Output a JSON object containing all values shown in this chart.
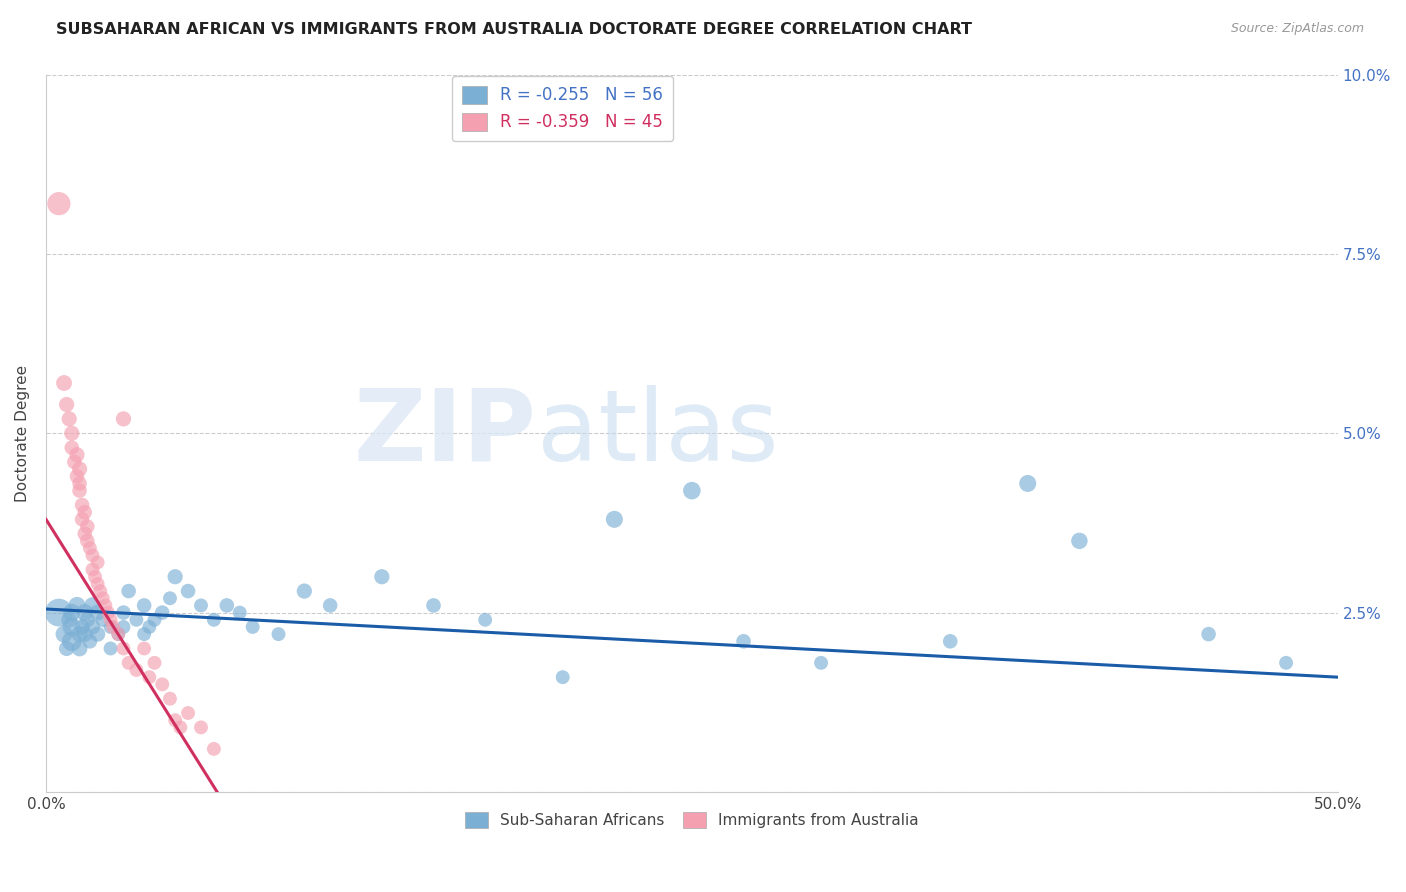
{
  "title": "SUBSAHARAN AFRICAN VS IMMIGRANTS FROM AUSTRALIA DOCTORATE DEGREE CORRELATION CHART",
  "source": "Source: ZipAtlas.com",
  "ylabel": "Doctorate Degree",
  "xlim": [
    0.0,
    0.5
  ],
  "ylim": [
    0.0,
    0.1
  ],
  "legend_R_blue": "-0.255",
  "legend_N_blue": "56",
  "legend_R_pink": "-0.359",
  "legend_N_pink": "45",
  "legend_label_blue": "Sub-Saharan Africans",
  "legend_label_pink": "Immigrants from Australia",
  "blue_color": "#7bafd4",
  "pink_color": "#f4a0b0",
  "blue_line_color": "#1a5ca8",
  "pink_line_color": "#d03060",
  "grid_color": "#cccccc",
  "title_color": "#222222",
  "axis_color": "#444444",
  "right_tick_color": "#4472c4",
  "blue_scatter": [
    [
      0.005,
      0.025
    ],
    [
      0.007,
      0.022
    ],
    [
      0.008,
      0.02
    ],
    [
      0.009,
      0.024
    ],
    [
      0.01,
      0.021
    ],
    [
      0.01,
      0.023
    ],
    [
      0.01,
      0.025
    ],
    [
      0.012,
      0.026
    ],
    [
      0.013,
      0.022
    ],
    [
      0.013,
      0.02
    ],
    [
      0.014,
      0.023
    ],
    [
      0.015,
      0.025
    ],
    [
      0.015,
      0.022
    ],
    [
      0.016,
      0.024
    ],
    [
      0.017,
      0.021
    ],
    [
      0.018,
      0.026
    ],
    [
      0.018,
      0.023
    ],
    [
      0.02,
      0.025
    ],
    [
      0.02,
      0.022
    ],
    [
      0.022,
      0.024
    ],
    [
      0.025,
      0.023
    ],
    [
      0.025,
      0.02
    ],
    [
      0.028,
      0.022
    ],
    [
      0.03,
      0.025
    ],
    [
      0.03,
      0.023
    ],
    [
      0.032,
      0.028
    ],
    [
      0.035,
      0.024
    ],
    [
      0.038,
      0.026
    ],
    [
      0.038,
      0.022
    ],
    [
      0.04,
      0.023
    ],
    [
      0.042,
      0.024
    ],
    [
      0.045,
      0.025
    ],
    [
      0.048,
      0.027
    ],
    [
      0.05,
      0.03
    ],
    [
      0.055,
      0.028
    ],
    [
      0.06,
      0.026
    ],
    [
      0.065,
      0.024
    ],
    [
      0.07,
      0.026
    ],
    [
      0.075,
      0.025
    ],
    [
      0.08,
      0.023
    ],
    [
      0.09,
      0.022
    ],
    [
      0.1,
      0.028
    ],
    [
      0.11,
      0.026
    ],
    [
      0.13,
      0.03
    ],
    [
      0.15,
      0.026
    ],
    [
      0.17,
      0.024
    ],
    [
      0.2,
      0.016
    ],
    [
      0.22,
      0.038
    ],
    [
      0.25,
      0.042
    ],
    [
      0.27,
      0.021
    ],
    [
      0.3,
      0.018
    ],
    [
      0.35,
      0.021
    ],
    [
      0.38,
      0.043
    ],
    [
      0.4,
      0.035
    ],
    [
      0.45,
      0.022
    ],
    [
      0.48,
      0.018
    ]
  ],
  "blue_scatter_sizes": [
    400,
    150,
    120,
    130,
    200,
    180,
    160,
    150,
    140,
    130,
    120,
    150,
    130,
    120,
    110,
    140,
    120,
    130,
    120,
    110,
    100,
    100,
    100,
    110,
    100,
    110,
    100,
    110,
    100,
    100,
    100,
    110,
    100,
    120,
    110,
    100,
    100,
    110,
    100,
    100,
    100,
    120,
    110,
    120,
    110,
    100,
    100,
    150,
    160,
    110,
    100,
    110,
    150,
    140,
    110,
    100
  ],
  "pink_scatter": [
    [
      0.005,
      0.082
    ],
    [
      0.007,
      0.057
    ],
    [
      0.008,
      0.054
    ],
    [
      0.009,
      0.052
    ],
    [
      0.01,
      0.05
    ],
    [
      0.01,
      0.048
    ],
    [
      0.011,
      0.046
    ],
    [
      0.012,
      0.047
    ],
    [
      0.012,
      0.044
    ],
    [
      0.013,
      0.045
    ],
    [
      0.013,
      0.043
    ],
    [
      0.013,
      0.042
    ],
    [
      0.014,
      0.04
    ],
    [
      0.014,
      0.038
    ],
    [
      0.015,
      0.039
    ],
    [
      0.015,
      0.036
    ],
    [
      0.016,
      0.037
    ],
    [
      0.016,
      0.035
    ],
    [
      0.017,
      0.034
    ],
    [
      0.018,
      0.033
    ],
    [
      0.018,
      0.031
    ],
    [
      0.019,
      0.03
    ],
    [
      0.02,
      0.032
    ],
    [
      0.02,
      0.029
    ],
    [
      0.021,
      0.028
    ],
    [
      0.022,
      0.027
    ],
    [
      0.023,
      0.026
    ],
    [
      0.024,
      0.025
    ],
    [
      0.025,
      0.024
    ],
    [
      0.026,
      0.023
    ],
    [
      0.028,
      0.022
    ],
    [
      0.03,
      0.052
    ],
    [
      0.03,
      0.02
    ],
    [
      0.032,
      0.018
    ],
    [
      0.035,
      0.017
    ],
    [
      0.038,
      0.02
    ],
    [
      0.04,
      0.016
    ],
    [
      0.042,
      0.018
    ],
    [
      0.045,
      0.015
    ],
    [
      0.048,
      0.013
    ],
    [
      0.05,
      0.01
    ],
    [
      0.052,
      0.009
    ],
    [
      0.055,
      0.011
    ],
    [
      0.06,
      0.009
    ],
    [
      0.065,
      0.006
    ]
  ],
  "pink_scatter_sizes": [
    280,
    130,
    120,
    120,
    120,
    110,
    110,
    120,
    110,
    120,
    110,
    110,
    110,
    110,
    110,
    110,
    110,
    110,
    100,
    100,
    100,
    100,
    100,
    100,
    100,
    100,
    100,
    100,
    100,
    100,
    100,
    120,
    100,
    100,
    100,
    100,
    100,
    100,
    100,
    100,
    100,
    100,
    100,
    100,
    100
  ],
  "blue_line_x": [
    0.0,
    0.5
  ],
  "blue_line_y": [
    0.0255,
    0.016
  ],
  "pink_line_x": [
    0.0,
    0.068
  ],
  "pink_line_y": [
    0.038,
    -0.001
  ]
}
